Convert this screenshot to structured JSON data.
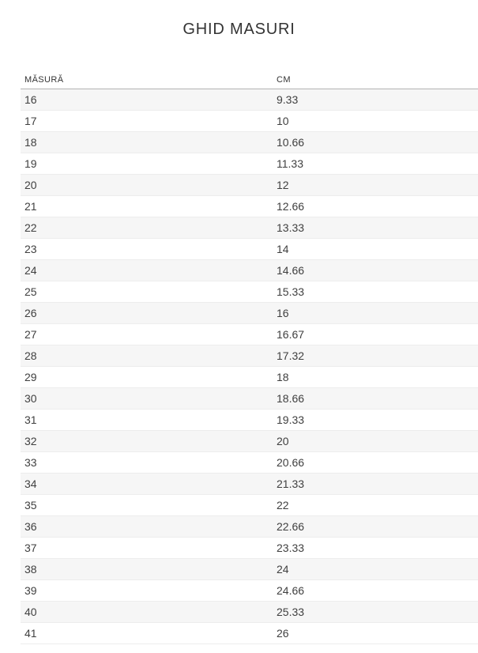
{
  "page": {
    "title": "GHID MASURI"
  },
  "table": {
    "headers": [
      "MĂSURĂ",
      "CM"
    ],
    "rows": [
      [
        "16",
        "9.33"
      ],
      [
        "17",
        "10"
      ],
      [
        "18",
        "10.66"
      ],
      [
        "19",
        "11.33"
      ],
      [
        "20",
        "12"
      ],
      [
        "21",
        "12.66"
      ],
      [
        "22",
        "13.33"
      ],
      [
        "23",
        "14"
      ],
      [
        "24",
        "14.66"
      ],
      [
        "25",
        "15.33"
      ],
      [
        "26",
        "16"
      ],
      [
        "27",
        "16.67"
      ],
      [
        "28",
        "17.32"
      ],
      [
        "29",
        "18"
      ],
      [
        "30",
        "18.66"
      ],
      [
        "31",
        "19.33"
      ],
      [
        "32",
        "20"
      ],
      [
        "33",
        "20.66"
      ],
      [
        "34",
        "21.33"
      ],
      [
        "35",
        "22"
      ],
      [
        "36",
        "22.66"
      ],
      [
        "37",
        "23.33"
      ],
      [
        "38",
        "24"
      ],
      [
        "39",
        "24.66"
      ],
      [
        "40",
        "25.33"
      ],
      [
        "41",
        "26"
      ]
    ]
  },
  "colors": {
    "zebra_row": "#f6f6f6",
    "row_border": "#ededed",
    "header_border": "#b3b3b3",
    "text": "#3f3f3f",
    "title_text": "#333333"
  }
}
